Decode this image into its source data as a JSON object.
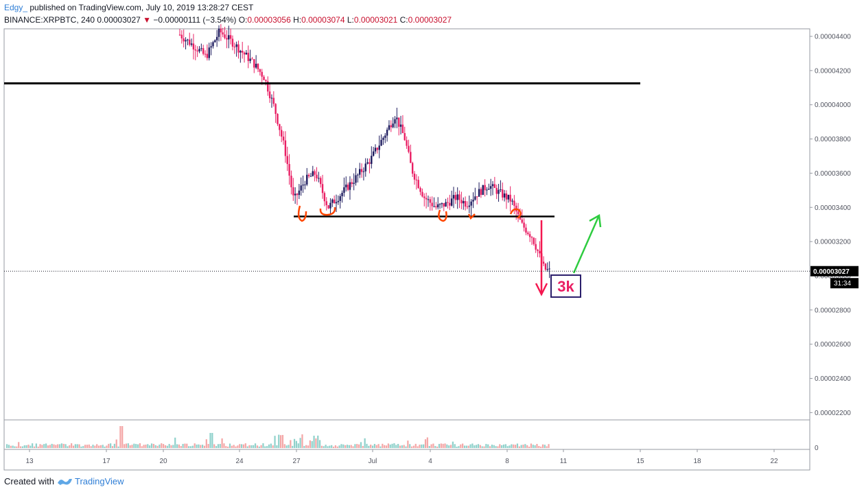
{
  "header": {
    "author": "Edgy_",
    "published_text": "published on TradingView.com, July 10, 2019 13:28:27 CEST",
    "symbol": "BINANCE:XRPBTC, 240",
    "last_price": "0.00003027",
    "change": "−0.00000111 (−3.54%)",
    "o_label": "O:",
    "o_value": "0.00003056",
    "h_label": "H:",
    "h_value": "0.00003074",
    "l_label": "L:",
    "l_value": "0.00003021",
    "c_label": "C:",
    "c_value": "0.00003027"
  },
  "footer": {
    "created_with": "Created with",
    "brand": "TradingView"
  },
  "chart_data": {
    "type": "candlestick",
    "y_ticks": [
      4.4e-05,
      4.2e-05,
      4e-05,
      3.8e-05,
      3.6e-05,
      3.4e-05,
      3.2e-05,
      3e-05,
      2.8e-05,
      2.6e-05,
      2.4e-05,
      2.2e-05
    ],
    "y_tick_labels": [
      "0.00004400",
      "0.00004200",
      "0.00004000",
      "0.00003800",
      "0.00003600",
      "0.00003400",
      "0.00003200",
      "0.00003000",
      "0.00002800",
      "0.00002600",
      "0.00002400",
      "0.00002200"
    ],
    "x_tick_labels": [
      "13",
      "17",
      "20",
      "24",
      "27",
      "Jul",
      "4",
      "8",
      "11",
      "15",
      "18",
      "22"
    ],
    "price_marker": "0.00003027",
    "countdown": "31:34",
    "volume_axis_label": "0",
    "annotation_text": "3k",
    "horizontal_levels": [
      4.125e-05,
      3.347e-05
    ],
    "colors": {
      "up": "#1c1a5e",
      "down": "#e91e63",
      "vol_up": "#8fd1cb",
      "vol_down": "#f4a6a6",
      "resistance": "#000000",
      "arrow_down": "#f4174f",
      "arrow_up": "#2ecc40",
      "markers": "#ff4500"
    }
  }
}
